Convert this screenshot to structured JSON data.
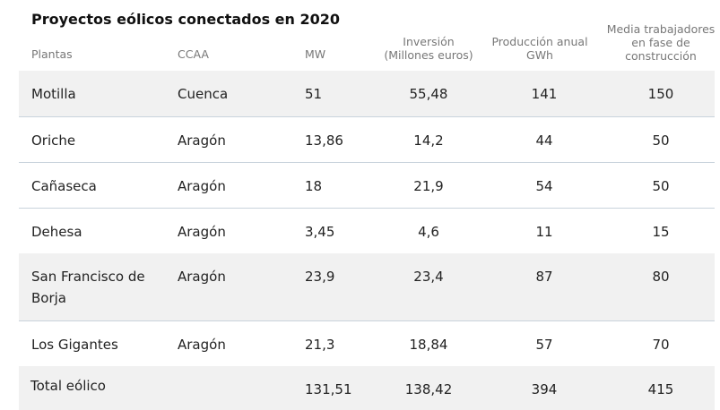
{
  "title": "Proyectos eólicos conectados en 2020",
  "headers": {
    "plantas": "Plantas",
    "ccaa": "CCAA",
    "mw": "MW",
    "inversion_l1": "Inversión",
    "inversion_l2": "(Millones euros)",
    "produccion_l1": "Producción anual",
    "produccion_l2": "GWh",
    "media_l1": "Media trabajadores",
    "media_l2": "en fase de",
    "media_l3": "construcción"
  },
  "rows": [
    {
      "planta": "Motilla",
      "planta2": "",
      "ccaa": "Cuenca",
      "mw": "51",
      "inversion": "55,48",
      "produccion": "141",
      "trabajadores": "150"
    },
    {
      "planta": "Oriche",
      "planta2": "",
      "ccaa": "Aragón",
      "mw": "13,86",
      "inversion": "14,2",
      "produccion": "44",
      "trabajadores": "50"
    },
    {
      "planta": "Cañaseca",
      "planta2": "",
      "ccaa": "Aragón",
      "mw": "18",
      "inversion": "21,9",
      "produccion": "54",
      "trabajadores": "50"
    },
    {
      "planta": "Dehesa",
      "planta2": "",
      "ccaa": "Aragón",
      "mw": "3,45",
      "inversion": "4,6",
      "produccion": "11",
      "trabajadores": "15"
    },
    {
      "planta": "San Francisco de",
      "planta2": "Borja",
      "ccaa": "Aragón",
      "mw": "23,9",
      "inversion": "23,4",
      "produccion": "87",
      "trabajadores": "80"
    },
    {
      "planta": "Los Gigantes",
      "planta2": "",
      "ccaa": "Aragón",
      "mw": "21,3",
      "inversion": "18,84",
      "produccion": "57",
      "trabajadores": "70"
    }
  ],
  "total": {
    "planta": "Total eólico",
    "ccaa": "",
    "mw": "131,51",
    "inversion": "138,42",
    "produccion": "394",
    "trabajadores": "415"
  }
}
